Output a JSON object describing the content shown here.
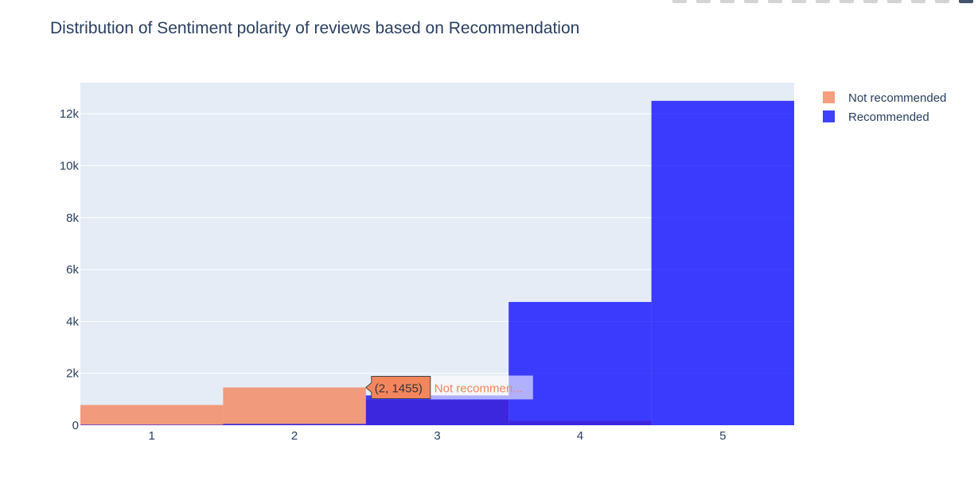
{
  "chart_data": {
    "type": "bar",
    "title": "Distribution of Sentiment polarity of reviews based on Recommendation",
    "xlabel": "",
    "ylabel": "",
    "categories": [
      "1",
      "2",
      "3",
      "4",
      "5"
    ],
    "x_values": [
      1,
      2,
      3,
      4,
      5
    ],
    "ylim": [
      0,
      13200
    ],
    "yticks": [
      0,
      2000,
      4000,
      6000,
      8000,
      10000,
      12000
    ],
    "ytick_labels": [
      "0",
      "2k",
      "4k",
      "6k",
      "8k",
      "10k",
      "12k"
    ],
    "grid": true,
    "barmode": "overlay",
    "legend_position": "top-right",
    "series": [
      {
        "name": "Not recommended",
        "color": "#F4865E",
        "opacity": 0.8,
        "values": [
          780,
          1455,
          980,
          170,
          0
        ]
      },
      {
        "name": "Recommended",
        "color": "#0000FF",
        "opacity": 0.75,
        "values": [
          20,
          50,
          1150,
          4750,
          12500
        ]
      }
    ],
    "tooltip": {
      "label": "(2, 1455)",
      "series_name": "Not recommen...",
      "color": "#F4865E"
    }
  },
  "colors": {
    "plot_bg": "#E5ECF6",
    "grid": "#ffffff",
    "text": "#2a3f5f"
  },
  "toolbar": {
    "icons": [
      "camera-icon",
      "zoom-icon",
      "pan-icon",
      "box-select-icon",
      "lasso-icon",
      "zoom-in-icon",
      "zoom-out-icon",
      "autoscale-icon",
      "reset-axes-icon",
      "spike-lines-icon",
      "hover-closest-icon",
      "hover-compare-icon",
      "plotly-logo-icon"
    ]
  }
}
